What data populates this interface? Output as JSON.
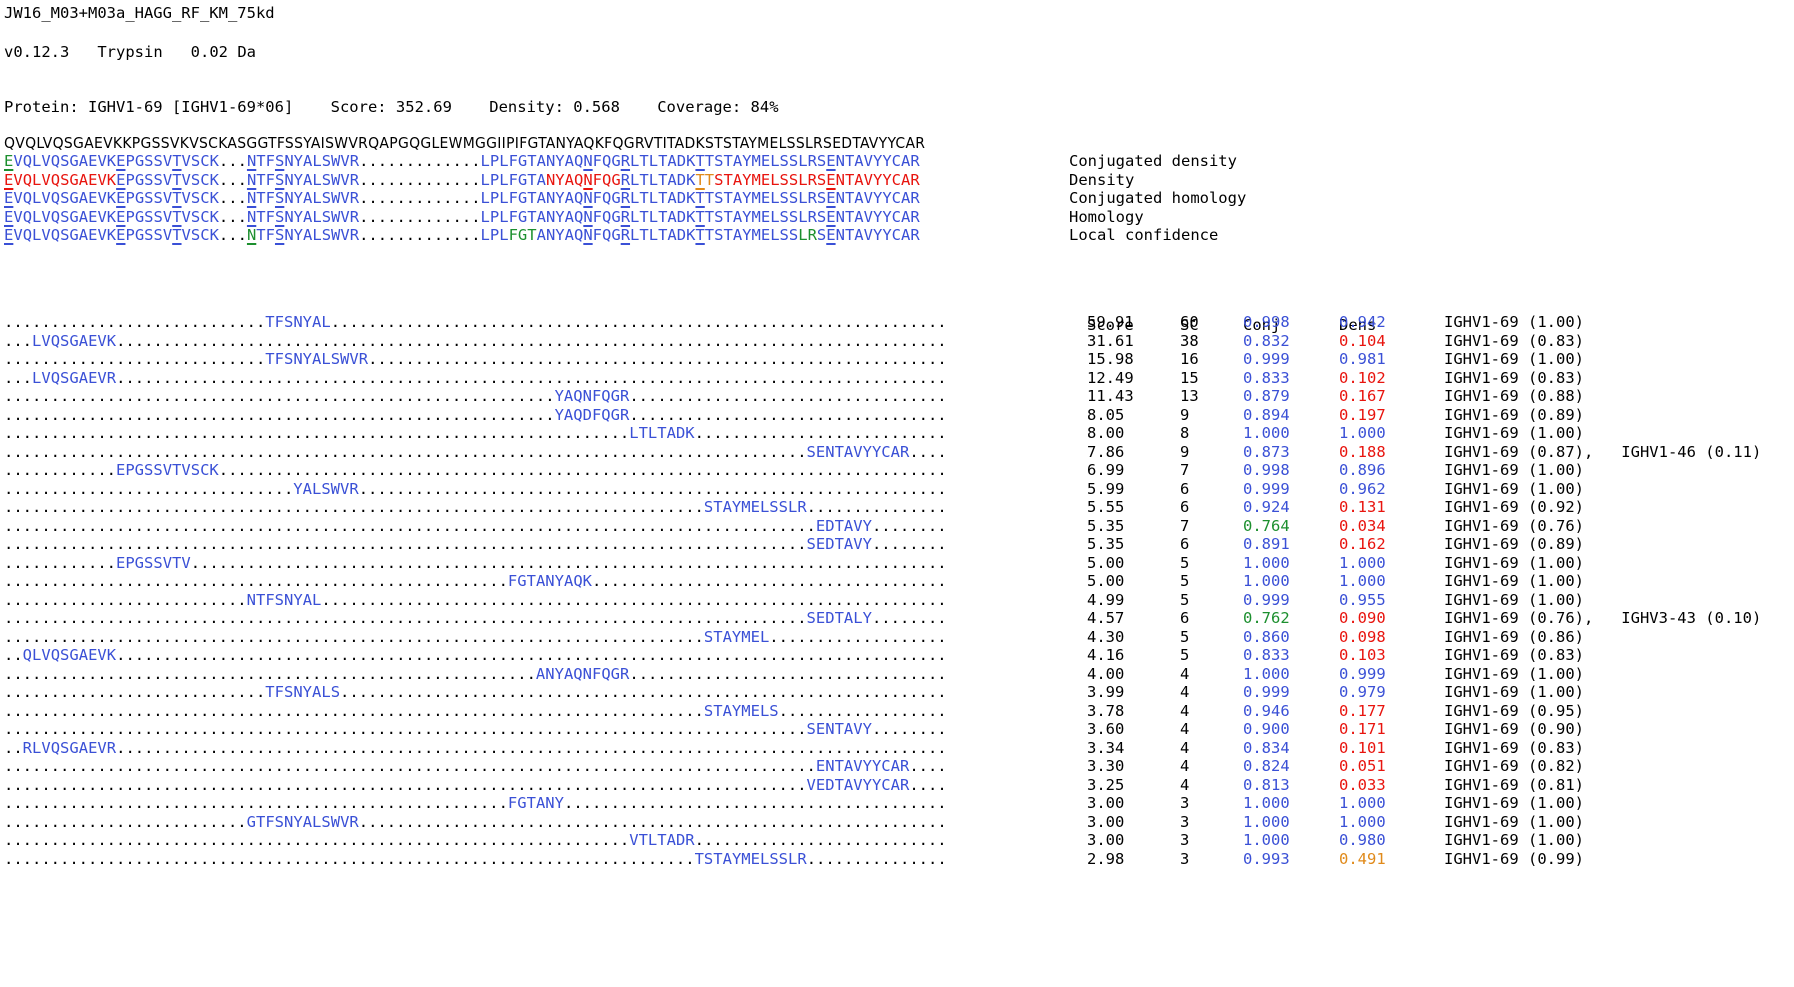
{
  "header": {
    "sample": "JW16_M03+M03a_HAGG_RF_KM_75kd",
    "version": "v0.12.3",
    "enzyme": "Trypsin",
    "tolerance": "0.02 Da",
    "protein_line": "Protein: IGHV1-69 [IGHV1-69*06]    Score: 352.69    Density: 0.568    Coverage: 84%"
  },
  "reference": "QVQLVQSGAEVKKPGSSVKVSCKASGGTFSSYAISWVRQAPGQGLEWMGGIIPIFGTANYAQKFQGRVTITADKSTSTAYMELSSLRSEDTAVYYCAR",
  "tracks": [
    {
      "label": "Conjugated density"
    },
    {
      "label": "Density"
    },
    {
      "label": "Conjugated homology"
    },
    {
      "label": "Homology"
    },
    {
      "label": "Local confidence"
    }
  ],
  "columns": {
    "score": "Score",
    "sc": "SC",
    "conj": "Conj",
    "dens": "Dens"
  },
  "colors": {
    "blue": "#3a50d6",
    "red": "#e8140e",
    "green": "#1c8f2e",
    "orange": "#e08a1a"
  },
  "peptides": [
    {
      "start": 28,
      "seq": "TFSNYAL",
      "score": "59.91",
      "sc": "60",
      "conj": "0.998",
      "dens": "0.942",
      "prot": "IGHV1-69 (1.00)"
    },
    {
      "start": 3,
      "seq": "LVQSGAEVK",
      "score": "31.61",
      "sc": "38",
      "conj": "0.832",
      "dens": "0.104",
      "prot": "IGHV1-69 (0.83)"
    },
    {
      "start": 28,
      "seq": "TFSNYALSWVR",
      "score": "15.98",
      "sc": "16",
      "conj": "0.999",
      "dens": "0.981",
      "prot": "IGHV1-69 (1.00)"
    },
    {
      "start": 3,
      "seq": "LVQSGAEVR",
      "score": "12.49",
      "sc": "15",
      "conj": "0.833",
      "dens": "0.102",
      "prot": "IGHV1-69 (0.83)"
    },
    {
      "start": 59,
      "seq": "YAQNFQGR",
      "score": "11.43",
      "sc": "13",
      "conj": "0.879",
      "dens": "0.167",
      "prot": "IGHV1-69 (0.88)"
    },
    {
      "start": 59,
      "seq": "YAQDFQGR",
      "score": "8.05",
      "sc": "9",
      "conj": "0.894",
      "dens": "0.197",
      "prot": "IGHV1-69 (0.89)"
    },
    {
      "start": 67,
      "seq": "LTLTADK",
      "score": "8.00",
      "sc": "8",
      "conj": "1.000",
      "dens": "1.000",
      "prot": "IGHV1-69 (1.00)"
    },
    {
      "start": 86,
      "seq": "SENTAVYYCAR",
      "score": "7.86",
      "sc": "9",
      "conj": "0.873",
      "dens": "0.188",
      "prot": "IGHV1-69 (0.87),   IGHV1-46 (0.11)"
    },
    {
      "start": 12,
      "seq": "EPGSSVTVSCK",
      "score": "6.99",
      "sc": "7",
      "conj": "0.998",
      "dens": "0.896",
      "prot": "IGHV1-69 (1.00)"
    },
    {
      "start": 31,
      "seq": "YALSWVR",
      "score": "5.99",
      "sc": "6",
      "conj": "0.999",
      "dens": "0.962",
      "prot": "IGHV1-69 (1.00)"
    },
    {
      "start": 75,
      "seq": "STAYMELSSLR",
      "score": "5.55",
      "sc": "6",
      "conj": "0.924",
      "dens": "0.131",
      "prot": "IGHV1-69 (0.92)"
    },
    {
      "start": 87,
      "seq": "EDTAVY",
      "score": "5.35",
      "sc": "7",
      "conj": "0.764",
      "dens": "0.034",
      "prot": "IGHV1-69 (0.76)"
    },
    {
      "start": 86,
      "seq": "SEDTAVY",
      "score": "5.35",
      "sc": "6",
      "conj": "0.891",
      "dens": "0.162",
      "prot": "IGHV1-69 (0.89)"
    },
    {
      "start": 12,
      "seq": "EPGSSVTV",
      "score": "5.00",
      "sc": "5",
      "conj": "1.000",
      "dens": "1.000",
      "prot": "IGHV1-69 (1.00)"
    },
    {
      "start": 54,
      "seq": "FGTANYAQK",
      "score": "5.00",
      "sc": "5",
      "conj": "1.000",
      "dens": "1.000",
      "prot": "IGHV1-69 (1.00)"
    },
    {
      "start": 26,
      "seq": "NTFSNYAL",
      "score": "4.99",
      "sc": "5",
      "conj": "0.999",
      "dens": "0.955",
      "prot": "IGHV1-69 (1.00)"
    },
    {
      "start": 86,
      "seq": "SEDTALY",
      "score": "4.57",
      "sc": "6",
      "conj": "0.762",
      "dens": "0.090",
      "prot": "IGHV1-69 (0.76),   IGHV3-43 (0.10)"
    },
    {
      "start": 75,
      "seq": "STAYMEL",
      "score": "4.30",
      "sc": "5",
      "conj": "0.860",
      "dens": "0.098",
      "prot": "IGHV1-69 (0.86)"
    },
    {
      "start": 2,
      "seq": "QLVQSGAEVK",
      "score": "4.16",
      "sc": "5",
      "conj": "0.833",
      "dens": "0.103",
      "prot": "IGHV1-69 (0.83)"
    },
    {
      "start": 57,
      "seq": "ANYAQNFQGR",
      "score": "4.00",
      "sc": "4",
      "conj": "1.000",
      "dens": "0.999",
      "prot": "IGHV1-69 (1.00)"
    },
    {
      "start": 28,
      "seq": "TFSNYALS",
      "score": "3.99",
      "sc": "4",
      "conj": "0.999",
      "dens": "0.979",
      "prot": "IGHV1-69 (1.00)"
    },
    {
      "start": 75,
      "seq": "STAYMELS",
      "score": "3.78",
      "sc": "4",
      "conj": "0.946",
      "dens": "0.177",
      "prot": "IGHV1-69 (0.95)"
    },
    {
      "start": 86,
      "seq": "SENTAVY",
      "score": "3.60",
      "sc": "4",
      "conj": "0.900",
      "dens": "0.171",
      "prot": "IGHV1-69 (0.90)"
    },
    {
      "start": 2,
      "seq": "RLVQSGAEVR",
      "score": "3.34",
      "sc": "4",
      "conj": "0.834",
      "dens": "0.101",
      "prot": "IGHV1-69 (0.83)"
    },
    {
      "start": 87,
      "seq": "ENTAVYYCAR",
      "score": "3.30",
      "sc": "4",
      "conj": "0.824",
      "dens": "0.051",
      "prot": "IGHV1-69 (0.82)"
    },
    {
      "start": 86,
      "seq": "VEDTAVYYCAR",
      "score": "3.25",
      "sc": "4",
      "conj": "0.813",
      "dens": "0.033",
      "prot": "IGHV1-69 (0.81)"
    },
    {
      "start": 54,
      "seq": "FGTANY",
      "score": "3.00",
      "sc": "3",
      "conj": "1.000",
      "dens": "1.000",
      "prot": "IGHV1-69 (1.00)"
    },
    {
      "start": 26,
      "seq": "GTFSNYALSWVR",
      "score": "3.00",
      "sc": "3",
      "conj": "1.000",
      "dens": "1.000",
      "prot": "IGHV1-69 (1.00)"
    },
    {
      "start": 67,
      "seq": "VTLTADR",
      "score": "3.00",
      "sc": "3",
      "conj": "1.000",
      "dens": "0.980",
      "prot": "IGHV1-69 (1.00)"
    },
    {
      "start": 74,
      "seq": "TSTAYMELSSLR",
      "score": "2.98",
      "sc": "3",
      "conj": "0.993",
      "dens": "0.491",
      "prot": "IGHV1-69 (0.99)"
    }
  ]
}
